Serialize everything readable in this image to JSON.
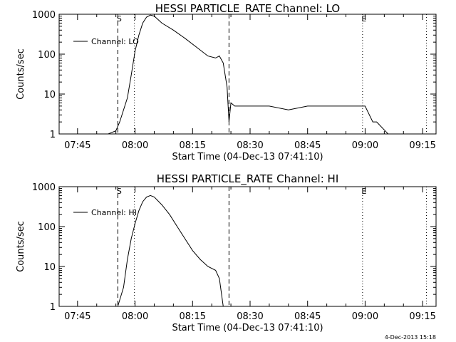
{
  "chart_data": [
    {
      "type": "line",
      "title": "HESSI PARTICLE_RATE Channel: LO",
      "xlabel": "Start Time (04-Dec-13 07:41:10)",
      "ylabel": "Counts/sec",
      "y_scale": "log",
      "ylim": [
        1,
        1000
      ],
      "xlim_minutes_after_07_00": [
        40.2,
        138.5
      ],
      "x_tick_labels": [
        "07:45",
        "08:00",
        "08:15",
        "08:30",
        "08:45",
        "09:00",
        "09:15"
      ],
      "y_tick_labels": [
        "1",
        "10",
        "100",
        "1000"
      ],
      "legend": "top-left",
      "series": [
        {
          "name": "Channel: LO",
          "x_time": [
            "07:41",
            "07:44",
            "07:46",
            "07:50",
            "07:53",
            "07:55",
            "07:56",
            "07:58",
            "07:59",
            "08:00",
            "08:01",
            "08:02",
            "08:03",
            "08:04",
            "08:05",
            "08:07",
            "08:10",
            "08:13",
            "08:16",
            "08:19",
            "08:21",
            "08:22",
            "08:23",
            "08:24",
            "08:24:30",
            "08:25",
            "08:26",
            "08:30",
            "08:35",
            "08:40",
            "08:45",
            "08:50",
            "08:55",
            "09:00",
            "09:02",
            "09:03",
            "09:06",
            "09:10",
            "09:14",
            "09:15",
            "09:17"
          ],
          "y": [
            1,
            1,
            1,
            1,
            1,
            1.2,
            2,
            8,
            30,
            120,
            300,
            600,
            850,
            950,
            900,
            600,
            400,
            250,
            150,
            90,
            80,
            90,
            60,
            15,
            2,
            6,
            5,
            5,
            5,
            4,
            5,
            5,
            5,
            5,
            2,
            2,
            1,
            1,
            1,
            1,
            1
          ]
        }
      ],
      "markers": [
        {
          "label": "S",
          "style": "dashed",
          "x_time": "07:55:30"
        },
        {
          "label": "",
          "style": "dashed",
          "x_time": "08:24:30"
        },
        {
          "label": "",
          "style": "dotted",
          "x_time": "07:59:50"
        },
        {
          "label": "E",
          "style": "dotted",
          "x_time": "08:59:20"
        },
        {
          "label": "",
          "style": "dotted",
          "x_time": "09:16:00"
        }
      ]
    },
    {
      "type": "line",
      "title": "HESSI PARTICLE_RATE Channel: HI",
      "xlabel": "Start Time (04-Dec-13 07:41:10)",
      "ylabel": "Counts/sec",
      "y_scale": "log",
      "ylim": [
        1,
        1000
      ],
      "xlim_minutes_after_07_00": [
        40.2,
        138.5
      ],
      "x_tick_labels": [
        "07:45",
        "08:00",
        "08:15",
        "08:30",
        "08:45",
        "09:00",
        "09:15"
      ],
      "y_tick_labels": [
        "1",
        "10",
        "100",
        "1000"
      ],
      "legend": "top-left",
      "series": [
        {
          "name": "Channel: HI",
          "x_time": [
            "07:55:30",
            "07:57",
            "07:58",
            "07:59",
            "08:00",
            "08:01",
            "08:02",
            "08:03",
            "08:04",
            "08:05",
            "08:07",
            "08:09",
            "08:11",
            "08:13",
            "08:15",
            "08:17",
            "08:19",
            "08:21",
            "08:22",
            "08:23"
          ],
          "y": [
            1,
            3,
            15,
            50,
            120,
            250,
            420,
            550,
            600,
            550,
            350,
            200,
            100,
            50,
            25,
            15,
            10,
            8,
            5,
            1
          ]
        }
      ],
      "markers": [
        {
          "label": "S",
          "style": "dashed",
          "x_time": "07:55:30"
        },
        {
          "label": "",
          "style": "dashed",
          "x_time": "08:24:30"
        },
        {
          "label": "",
          "style": "dotted",
          "x_time": "07:59:50"
        },
        {
          "label": "E",
          "style": "dotted",
          "x_time": "08:59:20"
        },
        {
          "label": "",
          "style": "dotted",
          "x_time": "09:16:00"
        }
      ]
    }
  ],
  "footer": {
    "timestamp": "4-Dec-2013 15:18"
  }
}
